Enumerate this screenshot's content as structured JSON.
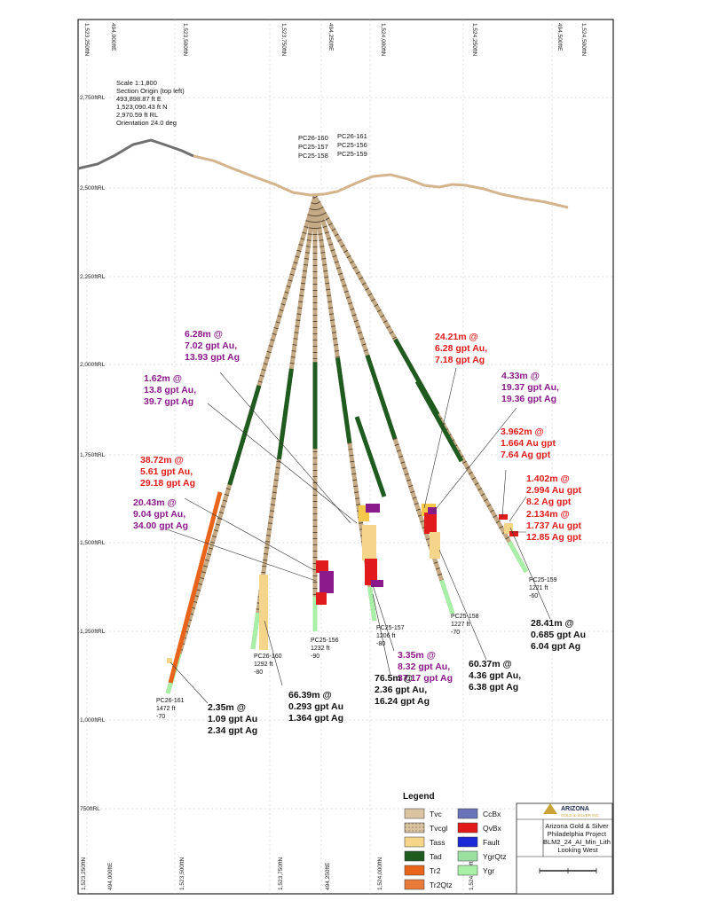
{
  "axes": {
    "left_labels": [
      "1,523,250ftN",
      "1,523,500ftN",
      "1,523,750ftN",
      "494,250ftE",
      "1,524,000ftN",
      "1,524,250ftN",
      "494,500ftE",
      "1,524,500ftN"
    ],
    "top_labels": [
      "1,523,250ftN",
      "494,000ftE",
      "1,523,500ftN",
      "1,523,750ftN",
      "494,250ftE",
      "1,524,000ftN",
      "1,524,250ftN",
      "494,500ftE",
      "1,524,500ftN"
    ],
    "bottom_labels": [
      "1,523,250ftN",
      "494,000ftE",
      "1,523,500ftN",
      "1,523,750ftN",
      "494,250ftE",
      "1,524,000ftN",
      "1,524,250ftN",
      "494,500ftE",
      "1,524,500ftN"
    ],
    "elevation_labels": [
      "2,750ftRL",
      "2,500ftRL",
      "2,250ftRL",
      "2,000ftRL",
      "1,750ftRL",
      "1,500ftRL",
      "1,250ftRL",
      "1,000ftRL",
      "750ftRL"
    ]
  },
  "section_info": [
    "Scale 1:1,800",
    "Section Origin (top left)",
    "493,898.87 ft E",
    "1,523,090.43 ft N",
    "2,970.59 ft RL",
    "Orientation 24.0 deg"
  ],
  "collar_labels": {
    "left": [
      "PC26-160",
      "PC25-157",
      "PC25-158"
    ],
    "right": [
      "PC26-161",
      "PC25-156",
      "PC25-159"
    ]
  },
  "holes": [
    {
      "id": "PC26-161",
      "length": "1472 ft",
      "dip": "-70"
    },
    {
      "id": "PC26-160",
      "length": "1292 ft",
      "dip": "-80"
    },
    {
      "id": "PC25-156",
      "length": "1232 ft",
      "dip": "-90"
    },
    {
      "id": "PC25-157",
      "length": "1206 ft",
      "dip": "-80"
    },
    {
      "id": "PC25-158",
      "length": "1227 ft",
      "dip": "-70"
    },
    {
      "id": "PC25-159",
      "length": "1221 ft",
      "dip": "-60"
    }
  ],
  "intercepts": [
    {
      "lines": [
        "6.28m @",
        "7.02 gpt Au,",
        "13.93 gpt Ag"
      ],
      "color": "#8b1a8b"
    },
    {
      "lines": [
        "1.62m @",
        "13.8 gpt Au,",
        "39.7 gpt Ag"
      ],
      "color": "#8b1a8b"
    },
    {
      "lines": [
        "38.72m @",
        "5.61 gpt Au,",
        "29.18 gpt Ag"
      ],
      "color": "#e01b1b"
    },
    {
      "lines": [
        "20.43m @",
        "9.04 gpt Au,",
        "34.00 gpt Ag"
      ],
      "color": "#8b1a8b"
    },
    {
      "lines": [
        "24.21m @",
        "6.28 gpt Au,",
        "7.18 gpt Ag"
      ],
      "color": "#e01b1b"
    },
    {
      "lines": [
        "4.33m @",
        "19.37 gpt Au,",
        "19.36 gpt Ag"
      ],
      "color": "#8b1a8b"
    },
    {
      "lines": [
        "3.962m @",
        "1.664 Au gpt",
        "7.64 Ag gpt"
      ],
      "color": "#e01b1b"
    },
    {
      "lines": [
        "1.402m @",
        "2.994 Au gpt",
        "8.2 Ag gpt"
      ],
      "color": "#e01b1b"
    },
    {
      "lines": [
        "2.134m @",
        "1.737 Au gpt",
        "12.85 Ag gpt"
      ],
      "color": "#e01b1b"
    },
    {
      "lines": [
        "3.35m @",
        "8.32 gpt Au,",
        "37.17 gpt Ag"
      ],
      "color": "#8b1a8b"
    },
    {
      "lines": [
        "28.41m @",
        "0.685 gpt Au",
        "6.04 gpt Ag"
      ],
      "color": "#111111"
    },
    {
      "lines": [
        "60.37m @",
        "4.36 gpt Au,",
        "6.38 gpt Ag"
      ],
      "color": "#111111"
    },
    {
      "lines": [
        "76.5m @",
        "2.36 gpt Au,",
        "16.24 gpt Ag"
      ],
      "color": "#111111"
    },
    {
      "lines": [
        "66.39m @",
        "0.293 gpt Au",
        "1.364 gpt Ag"
      ],
      "color": "#111111"
    },
    {
      "lines": [
        "2.35m @",
        "1.09 gpt Au",
        "2.34 gpt Ag"
      ],
      "color": "#111111"
    }
  ],
  "legend": {
    "title": "Legend",
    "items": [
      {
        "label": "Tvc",
        "color": "#d9c3a0"
      },
      {
        "label": "Tvcgl",
        "color": "#c9ad85"
      },
      {
        "label": "Tass",
        "color": "#f5d58a"
      },
      {
        "label": "Tad",
        "color": "#1f5a1f"
      },
      {
        "label": "Tr2",
        "color": "#e8641b"
      },
      {
        "label": "Tr2Qtz",
        "color": "#e87b3a"
      },
      {
        "label": "CcBx",
        "color": "#6a72b8"
      },
      {
        "label": "QvBx",
        "color": "#e11b1b"
      },
      {
        "label": "Fault",
        "color": "#1b2ad6"
      },
      {
        "label": "YgrQtz",
        "color": "#9be0a0"
      },
      {
        "label": "Ygr",
        "color": "#a8f0a8"
      }
    ]
  },
  "title_block": {
    "company_logo": "ARIZONA",
    "company_sub": "GOLD & SILVER INC",
    "lines": [
      "Arizona Gold & Silver",
      "Philadelphia Project",
      "BLM2_24_AI_Min_Lith",
      "Looking West"
    ]
  }
}
